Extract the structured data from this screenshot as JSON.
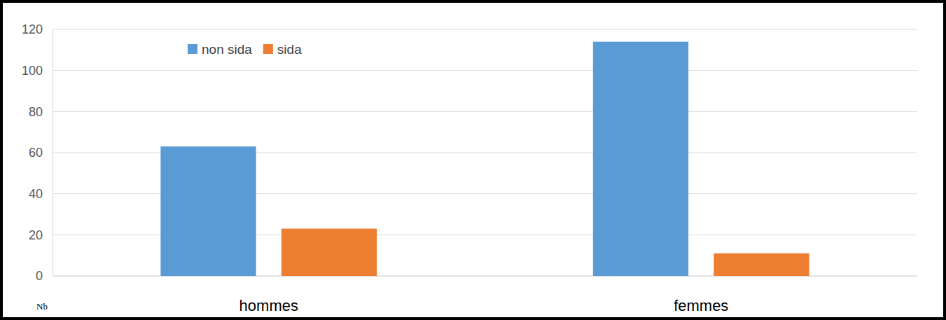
{
  "chart_data": {
    "type": "bar",
    "y_label": "Nb",
    "categories": [
      "hommes",
      "femmes"
    ],
    "series": [
      {
        "name": "non sida",
        "color": "#5b9bd5",
        "values": [
          63,
          114
        ]
      },
      {
        "name": "sida",
        "color": "#ed7d31",
        "values": [
          23,
          11
        ]
      }
    ],
    "ylim": [
      0,
      120
    ],
    "yticks": [
      0,
      20,
      40,
      60,
      80,
      100,
      120
    ],
    "grid": true,
    "legend": "top-left"
  }
}
